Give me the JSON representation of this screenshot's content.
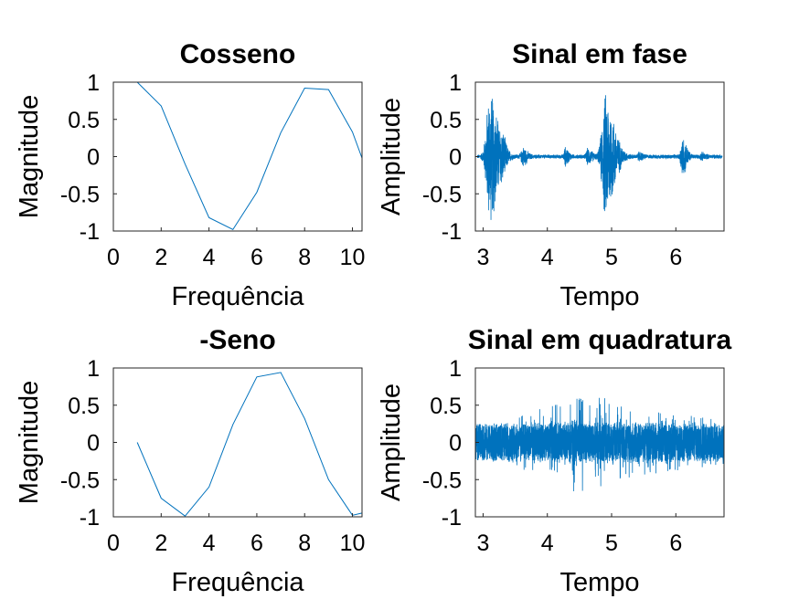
{
  "chart_data": [
    {
      "type": "line",
      "title": "Cosseno",
      "xlabel": "Frequência",
      "ylabel": "Magnitude",
      "xlim": [
        0,
        10.4
      ],
      "ylim": [
        -1,
        1
      ],
      "xticks": [
        0,
        2,
        4,
        6,
        8,
        10
      ],
      "yticks": [
        1,
        0.5,
        0,
        -0.5,
        -1
      ],
      "xtick_labels": [
        "0",
        "2",
        "4",
        "6",
        "8",
        "10"
      ],
      "ytick_labels": [
        "1",
        "0.5",
        "0",
        "-0.5",
        "-1"
      ],
      "grid": false,
      "series": [
        {
          "color": "#0072BD",
          "x": [
            1,
            2,
            3,
            4,
            5,
            6,
            7,
            8,
            9,
            10,
            10.4
          ],
          "y": [
            1.0,
            0.68,
            -0.1,
            -0.82,
            -0.98,
            -0.48,
            0.32,
            0.92,
            0.9,
            0.33,
            -0.02
          ]
        }
      ]
    },
    {
      "type": "line",
      "title": "Sinal em fase",
      "xlabel": "Tempo",
      "ylabel": "Amplitude",
      "xlim": [
        2.88,
        6.75
      ],
      "ylim": [
        -1,
        1
      ],
      "xticks": [
        3,
        4,
        5,
        6
      ],
      "yticks": [
        1,
        0.5,
        0,
        -0.5,
        -1
      ],
      "xtick_labels": [
        "3",
        "4",
        "5",
        "6"
      ],
      "ytick_labels": [
        "1",
        "0.5",
        "0",
        "-0.5",
        "-1"
      ],
      "grid": false,
      "series": [
        {
          "color": "#0072BD",
          "bursts": [
            {
              "center": 3.1,
              "width": 0.13,
              "amp": 0.92
            },
            {
              "center": 3.3,
              "width": 0.05,
              "amp": 0.12
            },
            {
              "center": 3.62,
              "width": 0.06,
              "amp": 0.12
            },
            {
              "center": 4.28,
              "width": 0.04,
              "amp": 0.06
            },
            {
              "center": 4.28,
              "width": 0.05,
              "amp": 0.06
            },
            {
              "center": 4.63,
              "width": 0.06,
              "amp": 0.1
            },
            {
              "center": 4.9,
              "width": 0.13,
              "amp": 0.9
            },
            {
              "center": 5.43,
              "width": 0.05,
              "amp": 0.05
            },
            {
              "center": 6.1,
              "width": 0.06,
              "amp": 0.28
            },
            {
              "center": 6.4,
              "width": 0.05,
              "amp": 0.04
            }
          ],
          "noise_floor": 0.03
        }
      ]
    },
    {
      "type": "line",
      "title": "-Seno",
      "xlabel": "Frequência",
      "ylabel": "Magnitude",
      "xlim": [
        0,
        10.4
      ],
      "ylim": [
        -1,
        1
      ],
      "xticks": [
        0,
        2,
        4,
        6,
        8,
        10
      ],
      "yticks": [
        1,
        0.5,
        0,
        -0.5,
        -1
      ],
      "xtick_labels": [
        "0",
        "2",
        "4",
        "6",
        "8",
        "10"
      ],
      "ytick_labels": [
        "1",
        "0.5",
        "0",
        "-0.5",
        "-1"
      ],
      "grid": false,
      "series": [
        {
          "color": "#0072BD",
          "x": [
            1,
            2,
            3,
            4,
            5,
            6,
            7,
            8,
            9,
            10,
            10.4
          ],
          "y": [
            0.0,
            -0.75,
            -0.99,
            -0.6,
            0.24,
            0.88,
            0.94,
            0.32,
            -0.5,
            -0.98,
            -0.95
          ]
        }
      ]
    },
    {
      "type": "line",
      "title": "Sinal em quadratura",
      "xlabel": "Tempo",
      "ylabel": "Amplitude",
      "xlim": [
        2.88,
        6.75
      ],
      "ylim": [
        -1,
        1
      ],
      "xticks": [
        3,
        4,
        5,
        6
      ],
      "yticks": [
        1,
        0.5,
        0,
        -0.5,
        -1
      ],
      "xtick_labels": [
        "3",
        "4",
        "5",
        "6"
      ],
      "ytick_labels": [
        "1",
        "0.5",
        "0",
        "-0.5",
        "-1"
      ],
      "grid": false,
      "series": [
        {
          "color": "#0072BD",
          "envelope": [
            [
              2.88,
              0.28
            ],
            [
              3.3,
              0.3
            ],
            [
              3.8,
              0.42
            ],
            [
              4.2,
              0.55
            ],
            [
              4.45,
              0.72
            ],
            [
              4.75,
              0.65
            ],
            [
              5.2,
              0.5
            ],
            [
              5.7,
              0.42
            ],
            [
              6.2,
              0.36
            ],
            [
              6.75,
              0.32
            ]
          ],
          "dense_band": 0.22
        }
      ]
    }
  ]
}
